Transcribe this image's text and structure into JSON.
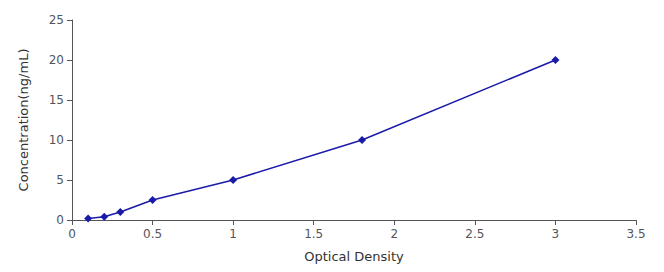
{
  "chart_data": {
    "type": "line",
    "x": [
      0.1,
      0.2,
      0.3,
      0.5,
      1.0,
      1.8,
      3.0
    ],
    "values": [
      0.2,
      0.4,
      1.0,
      2.5,
      5.0,
      10.0,
      20.0
    ],
    "color": "#1a1aaa",
    "marker": "diamond",
    "line_style": "solid",
    "xlabel": "Optical Density",
    "ylabel": "Concentration(ng/mL)",
    "xlim": [
      0,
      3.5
    ],
    "ylim": [
      0,
      25
    ],
    "xticks": [
      0,
      0.5,
      1,
      1.5,
      2,
      2.5,
      3,
      3.5
    ],
    "yticks": [
      0,
      5,
      10,
      15,
      20,
      25
    ],
    "grid": false
  }
}
